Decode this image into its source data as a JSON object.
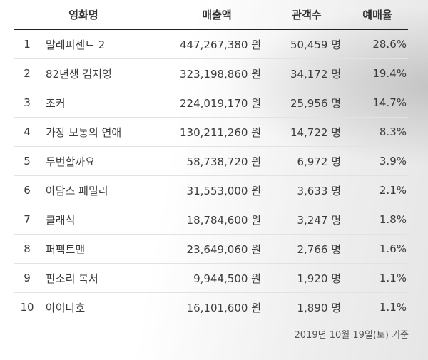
{
  "table": {
    "headers": {
      "title": "영화명",
      "sales": "매출액",
      "audience": "관객수",
      "rate": "예매율"
    },
    "rows": [
      {
        "rank": "1",
        "title": "말레피센트 2",
        "sales": "447,267,380 원",
        "audience": "50,459 명",
        "rate": "28.6%"
      },
      {
        "rank": "2",
        "title": "82년생 김지영",
        "sales": "323,198,860 원",
        "audience": "34,172 명",
        "rate": "19.4%"
      },
      {
        "rank": "3",
        "title": "조커",
        "sales": "224,019,170 원",
        "audience": "25,956 명",
        "rate": "14.7%"
      },
      {
        "rank": "4",
        "title": "가장 보통의 연애",
        "sales": "130,211,260 원",
        "audience": "14,722 명",
        "rate": "8.3%"
      },
      {
        "rank": "5",
        "title": "두번할까요",
        "sales": "58,738,720 원",
        "audience": "6,972 명",
        "rate": "3.9%"
      },
      {
        "rank": "6",
        "title": "아담스 패밀리",
        "sales": "31,553,000 원",
        "audience": "3,633 명",
        "rate": "2.1%"
      },
      {
        "rank": "7",
        "title": "클래식",
        "sales": "18,784,600 원",
        "audience": "3,247 명",
        "rate": "1.8%"
      },
      {
        "rank": "8",
        "title": "퍼펙트맨",
        "sales": "23,649,060 원",
        "audience": "2,766 명",
        "rate": "1.6%"
      },
      {
        "rank": "9",
        "title": "판소리 복서",
        "sales": "9,944,500 원",
        "audience": "1,920 명",
        "rate": "1.1%"
      },
      {
        "rank": "10",
        "title": "아이다호",
        "sales": "16,101,600 원",
        "audience": "1,890 명",
        "rate": "1.1%"
      }
    ]
  },
  "footnote": "2019년 10월 19일(토) 기준"
}
